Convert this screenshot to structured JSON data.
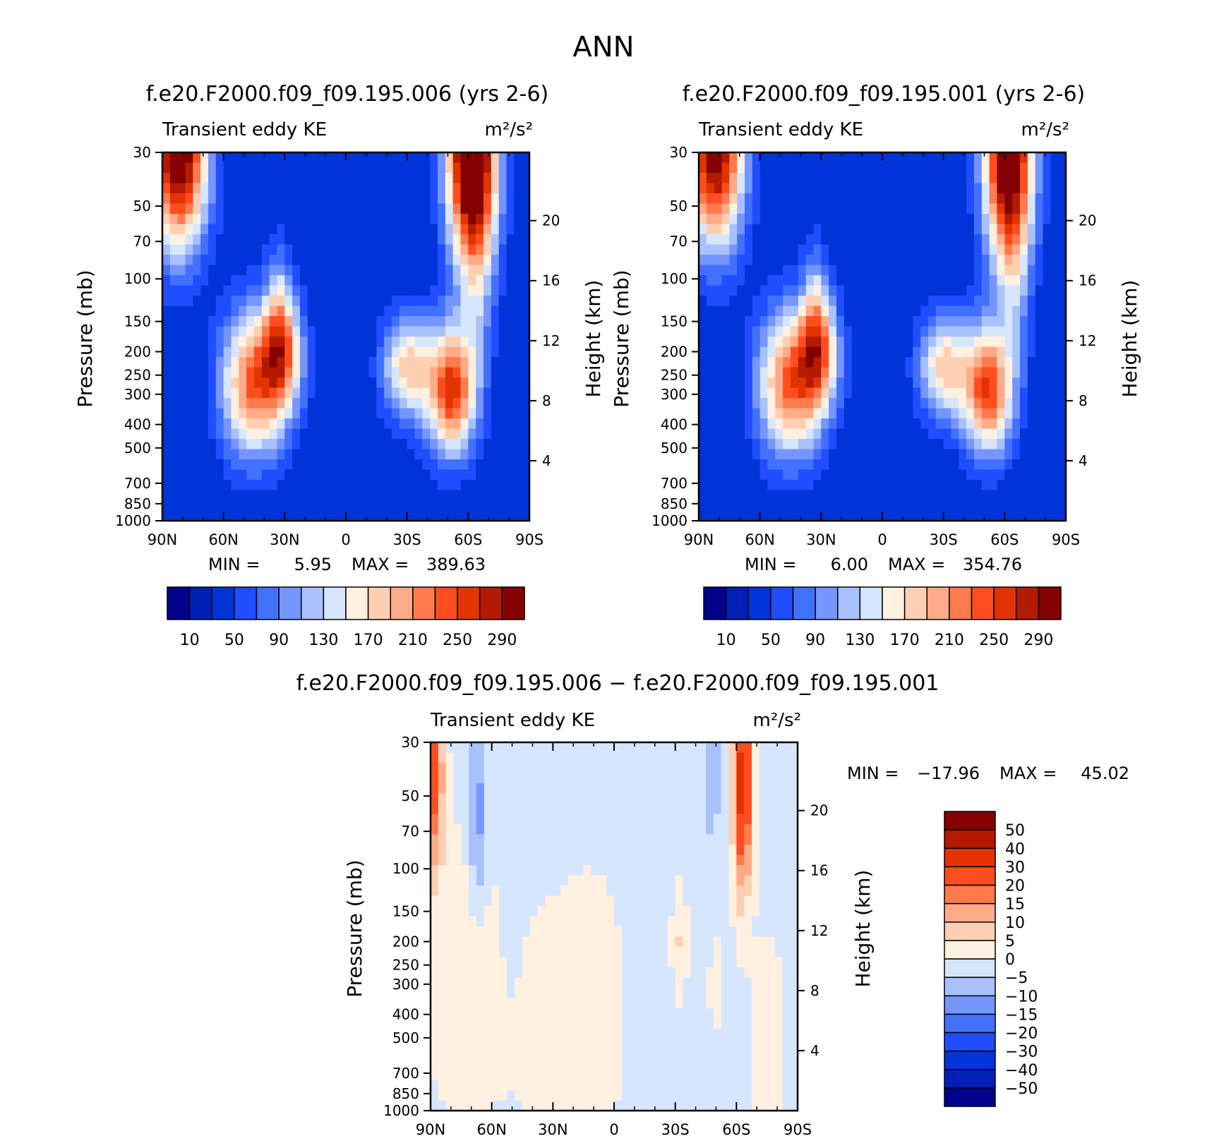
{
  "page_title": "ANN",
  "scale": {
    "colors": [
      "#00008b",
      "#0020b4",
      "#0034d9",
      "#1f4dff",
      "#4271ff",
      "#7595ff",
      "#a9c1ff",
      "#d6e6ff",
      "#fff0e0",
      "#ffcfb3",
      "#ffab87",
      "#ff7a4d",
      "#ff4d1f",
      "#e33400",
      "#b31a00",
      "#850000"
    ]
  },
  "chart_data": [
    {
      "type": "heatmap",
      "title": "f.e20.F2000.f09_f09.195.006 (yrs 2-6)",
      "variable": "Transient eddy KE",
      "units": "m²/s²",
      "ylabel": "Pressure (mb)",
      "ylabel_right": "Height (km)",
      "xticks": [
        "90N",
        "60N",
        "30N",
        "0",
        "30S",
        "60S",
        "90S"
      ],
      "xtick_values": [
        90,
        60,
        30,
        0,
        -30,
        -60,
        -90
      ],
      "yticks": [
        30,
        50,
        70,
        100,
        150,
        200,
        250,
        300,
        400,
        500,
        700,
        850,
        1000
      ],
      "height_ticks": [
        4,
        8,
        12,
        16,
        20
      ],
      "min_label": "MIN =",
      "min_value": "5.95",
      "max_label": "MAX =",
      "max_value": "389.63",
      "colorbar_ticks": [
        "10",
        "50",
        "90",
        "130",
        "170",
        "210",
        "250",
        "290"
      ],
      "features": [
        {
          "lat": 82,
          "p": 30,
          "amp": 300,
          "slat": 14,
          "sp": 0.9
        },
        {
          "lat": 45,
          "p": 270,
          "amp": 200,
          "slat": 16,
          "sp": 0.7
        },
        {
          "lat": 31,
          "p": 200,
          "amp": 150,
          "slat": 10,
          "sp": 0.55
        },
        {
          "lat": 33,
          "p": 120,
          "amp": 60,
          "slat": 6,
          "sp": 0.6
        },
        {
          "lat": -30,
          "p": 230,
          "amp": 150,
          "slat": 12,
          "sp": 0.5
        },
        {
          "lat": -52,
          "p": 290,
          "amp": 230,
          "slat": 12,
          "sp": 0.6
        },
        {
          "lat": -62,
          "p": 30,
          "amp": 360,
          "slat": 12,
          "sp": 1.1
        },
        {
          "lat": -65,
          "p": 120,
          "amp": 40,
          "slat": 7,
          "sp": 0.8
        }
      ]
    },
    {
      "type": "heatmap",
      "title": "f.e20.F2000.f09_f09.195.001 (yrs 2-6)",
      "variable": "Transient eddy KE",
      "units": "m²/s²",
      "ylabel": "Pressure (mb)",
      "ylabel_right": "Height (km)",
      "xticks": [
        "90N",
        "60N",
        "30N",
        "0",
        "30S",
        "60S",
        "90S"
      ],
      "xtick_values": [
        90,
        60,
        30,
        0,
        -30,
        -60,
        -90
      ],
      "yticks": [
        30,
        50,
        70,
        100,
        150,
        200,
        250,
        300,
        400,
        500,
        700,
        850,
        1000
      ],
      "height_ticks": [
        4,
        8,
        12,
        16,
        20
      ],
      "min_label": "MIN =",
      "min_value": "6.00",
      "max_label": "MAX =",
      "max_value": "354.76",
      "colorbar_ticks": [
        "10",
        "50",
        "90",
        "130",
        "170",
        "210",
        "250",
        "290"
      ],
      "features": [
        {
          "lat": 82,
          "p": 30,
          "amp": 280,
          "slat": 14,
          "sp": 0.9
        },
        {
          "lat": 45,
          "p": 270,
          "amp": 200,
          "slat": 16,
          "sp": 0.7
        },
        {
          "lat": 31,
          "p": 200,
          "amp": 150,
          "slat": 10,
          "sp": 0.55
        },
        {
          "lat": 33,
          "p": 120,
          "amp": 60,
          "slat": 6,
          "sp": 0.6
        },
        {
          "lat": -30,
          "p": 230,
          "amp": 150,
          "slat": 12,
          "sp": 0.5
        },
        {
          "lat": -52,
          "p": 290,
          "amp": 220,
          "slat": 12,
          "sp": 0.6
        },
        {
          "lat": -62,
          "p": 30,
          "amp": 320,
          "slat": 12,
          "sp": 1.1
        },
        {
          "lat": -65,
          "p": 120,
          "amp": 40,
          "slat": 7,
          "sp": 0.8
        }
      ]
    },
    {
      "type": "heatmap",
      "title": "f.e20.F2000.f09_f09.195.006 − f.e20.F2000.f09_f09.195.001",
      "variable": "Transient eddy KE",
      "units": "m²/s²",
      "ylabel": "Pressure (mb)",
      "ylabel_right": "Height (km)",
      "xticks": [
        "90N",
        "60N",
        "30N",
        "0",
        "30S",
        "60S",
        "90S"
      ],
      "xtick_values": [
        90,
        60,
        30,
        0,
        -30,
        -60,
        -90
      ],
      "yticks": [
        30,
        50,
        70,
        100,
        150,
        200,
        250,
        300,
        400,
        500,
        700,
        850,
        1000
      ],
      "height_ticks": [
        4,
        8,
        12,
        16,
        20
      ],
      "min_label": "MIN =",
      "min_value": "−17.96",
      "max_label": "MAX =",
      "max_value": "45.02",
      "colorbar_ticks": [
        "50",
        "40",
        "30",
        "20",
        "15",
        "10",
        "5",
        "0",
        "−5",
        "−10",
        "−15",
        "−20",
        "−30",
        "−40",
        "−50"
      ],
      "features": [
        {
          "lat": 88,
          "p": 40,
          "amp": 25,
          "slat": 4,
          "sp": 0.9
        },
        {
          "lat": 75,
          "p": 250,
          "amp": 3,
          "slat": 20,
          "sp": 1.3
        },
        {
          "lat": 67,
          "p": 60,
          "amp": -12,
          "slat": 4,
          "sp": 0.8
        },
        {
          "lat": 30,
          "p": 400,
          "amp": 2,
          "slat": 30,
          "sp": 1.2
        },
        {
          "lat": -32,
          "p": 200,
          "amp": 6,
          "slat": 3,
          "sp": 0.5
        },
        {
          "lat": -48,
          "p": 40,
          "amp": -8,
          "slat": 4,
          "sp": 0.8
        },
        {
          "lat": -63,
          "p": 45,
          "amp": 38,
          "slat": 4,
          "sp": 0.9
        },
        {
          "lat": -50,
          "p": 300,
          "amp": 4,
          "slat": 3,
          "sp": 0.4
        },
        {
          "lat": -75,
          "p": 500,
          "amp": 2,
          "slat": 10,
          "sp": 1.2
        },
        {
          "lat": 10,
          "p": 400,
          "amp": 1.5,
          "slat": 15,
          "sp": 1.5
        },
        {
          "lat": 50,
          "p": 110,
          "amp": -2,
          "slat": 6,
          "sp": 1.2
        }
      ]
    }
  ]
}
